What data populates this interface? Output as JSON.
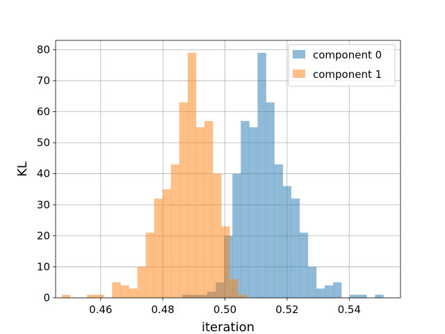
{
  "chart_data": {
    "type": "bar",
    "title": "",
    "xlabel": "iteration",
    "ylabel": "KL",
    "xlim": [
      0.4455,
      0.5565
    ],
    "ylim": [
      0,
      83
    ],
    "grid": true,
    "legend_position": "top-right",
    "bin_width": 0.0027,
    "x_ticks": [
      0.46,
      0.48,
      0.5,
      0.52,
      0.54
    ],
    "x_tick_labels": [
      "0.46",
      "0.48",
      "0.50",
      "0.52",
      "0.54"
    ],
    "y_ticks": [
      0,
      10,
      20,
      30,
      40,
      50,
      60,
      70,
      80
    ],
    "y_tick_labels": [
      "0",
      "10",
      "20",
      "30",
      "40",
      "50",
      "60",
      "70",
      "80"
    ],
    "series": [
      {
        "name": "component 0",
        "color": "#1f77b4",
        "opacity": 0.5,
        "bins": [
          [
            0.4862,
            1
          ],
          [
            0.4889,
            1
          ],
          [
            0.4916,
            1
          ],
          [
            0.4943,
            2
          ],
          [
            0.497,
            5
          ],
          [
            0.4997,
            20
          ],
          [
            0.5024,
            40
          ],
          [
            0.5051,
            57
          ],
          [
            0.5078,
            55
          ],
          [
            0.5105,
            79
          ],
          [
            0.5132,
            63
          ],
          [
            0.5159,
            43
          ],
          [
            0.5186,
            36
          ],
          [
            0.5213,
            32
          ],
          [
            0.524,
            21
          ],
          [
            0.5267,
            10
          ],
          [
            0.5294,
            3
          ],
          [
            0.5321,
            4
          ],
          [
            0.5348,
            5
          ],
          [
            0.5375,
            0
          ],
          [
            0.5402,
            1
          ],
          [
            0.5429,
            1
          ],
          [
            0.5456,
            0
          ],
          [
            0.5483,
            1
          ]
        ]
      },
      {
        "name": "component 1",
        "color": "#ff7f0e",
        "opacity": 0.5,
        "bins": [
          [
            0.4475,
            1
          ],
          [
            0.4502,
            0
          ],
          [
            0.4529,
            0
          ],
          [
            0.4556,
            1
          ],
          [
            0.4583,
            1
          ],
          [
            0.461,
            0
          ],
          [
            0.4637,
            5
          ],
          [
            0.4664,
            4
          ],
          [
            0.4691,
            3
          ],
          [
            0.4718,
            10
          ],
          [
            0.4745,
            21
          ],
          [
            0.4772,
            32
          ],
          [
            0.4799,
            35
          ],
          [
            0.4826,
            43
          ],
          [
            0.4853,
            63
          ],
          [
            0.488,
            79
          ],
          [
            0.4907,
            55
          ],
          [
            0.4934,
            57
          ],
          [
            0.4961,
            40
          ],
          [
            0.4988,
            23
          ],
          [
            0.5015,
            6
          ],
          [
            0.5042,
            1
          ],
          [
            0.5069,
            0
          ],
          [
            0.5096,
            0
          ]
        ]
      }
    ]
  }
}
